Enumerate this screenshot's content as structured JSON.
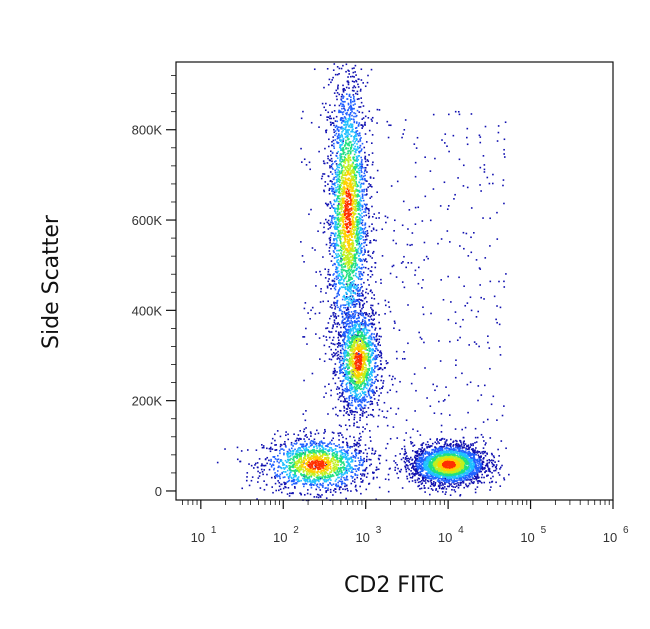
{
  "chart_data": {
    "type": "scatter",
    "style": "flow-cytometry density dot plot",
    "xlabel": "CD2 FITC",
    "ylabel": "Side Scatter",
    "x_scale": "log",
    "xlim": [
      5,
      1000000
    ],
    "ylim": [
      -20000,
      950000
    ],
    "x_ticks": [
      {
        "base": "10",
        "exp": "1",
        "value": 10
      },
      {
        "base": "10",
        "exp": "2",
        "value": 100
      },
      {
        "base": "10",
        "exp": "3",
        "value": 1000
      },
      {
        "base": "10",
        "exp": "4",
        "value": 10000
      },
      {
        "base": "10",
        "exp": "5",
        "value": 100000
      },
      {
        "base": "10",
        "exp": "6",
        "value": 1000000
      }
    ],
    "y_ticks": [
      {
        "label": "0",
        "value": 0
      },
      {
        "label": "200K",
        "value": 200000
      },
      {
        "label": "400K",
        "value": 400000
      },
      {
        "label": "600K",
        "value": 600000
      },
      {
        "label": "800K",
        "value": 800000
      }
    ],
    "grid": false,
    "legend": "none",
    "density_colors": [
      "#1010b0",
      "#2060ff",
      "#20c0ff",
      "#20e080",
      "#c0f020",
      "#ffd000",
      "#ff3000"
    ],
    "populations": [
      {
        "x_center": 250,
        "y_center": 60000,
        "x_spread_log": 0.32,
        "y_spread": 30000,
        "density": "medium"
      },
      {
        "x_center": 600,
        "y_center": 620000,
        "x_spread_log": 0.12,
        "y_spread": 150000,
        "density": "high"
      },
      {
        "x_center": 800,
        "y_center": 290000,
        "x_spread_log": 0.13,
        "y_spread": 60000,
        "density": "medium"
      },
      {
        "x_center": 10000,
        "y_center": 60000,
        "x_spread_log": 0.22,
        "y_spread": 22000,
        "density": "high"
      }
    ]
  }
}
